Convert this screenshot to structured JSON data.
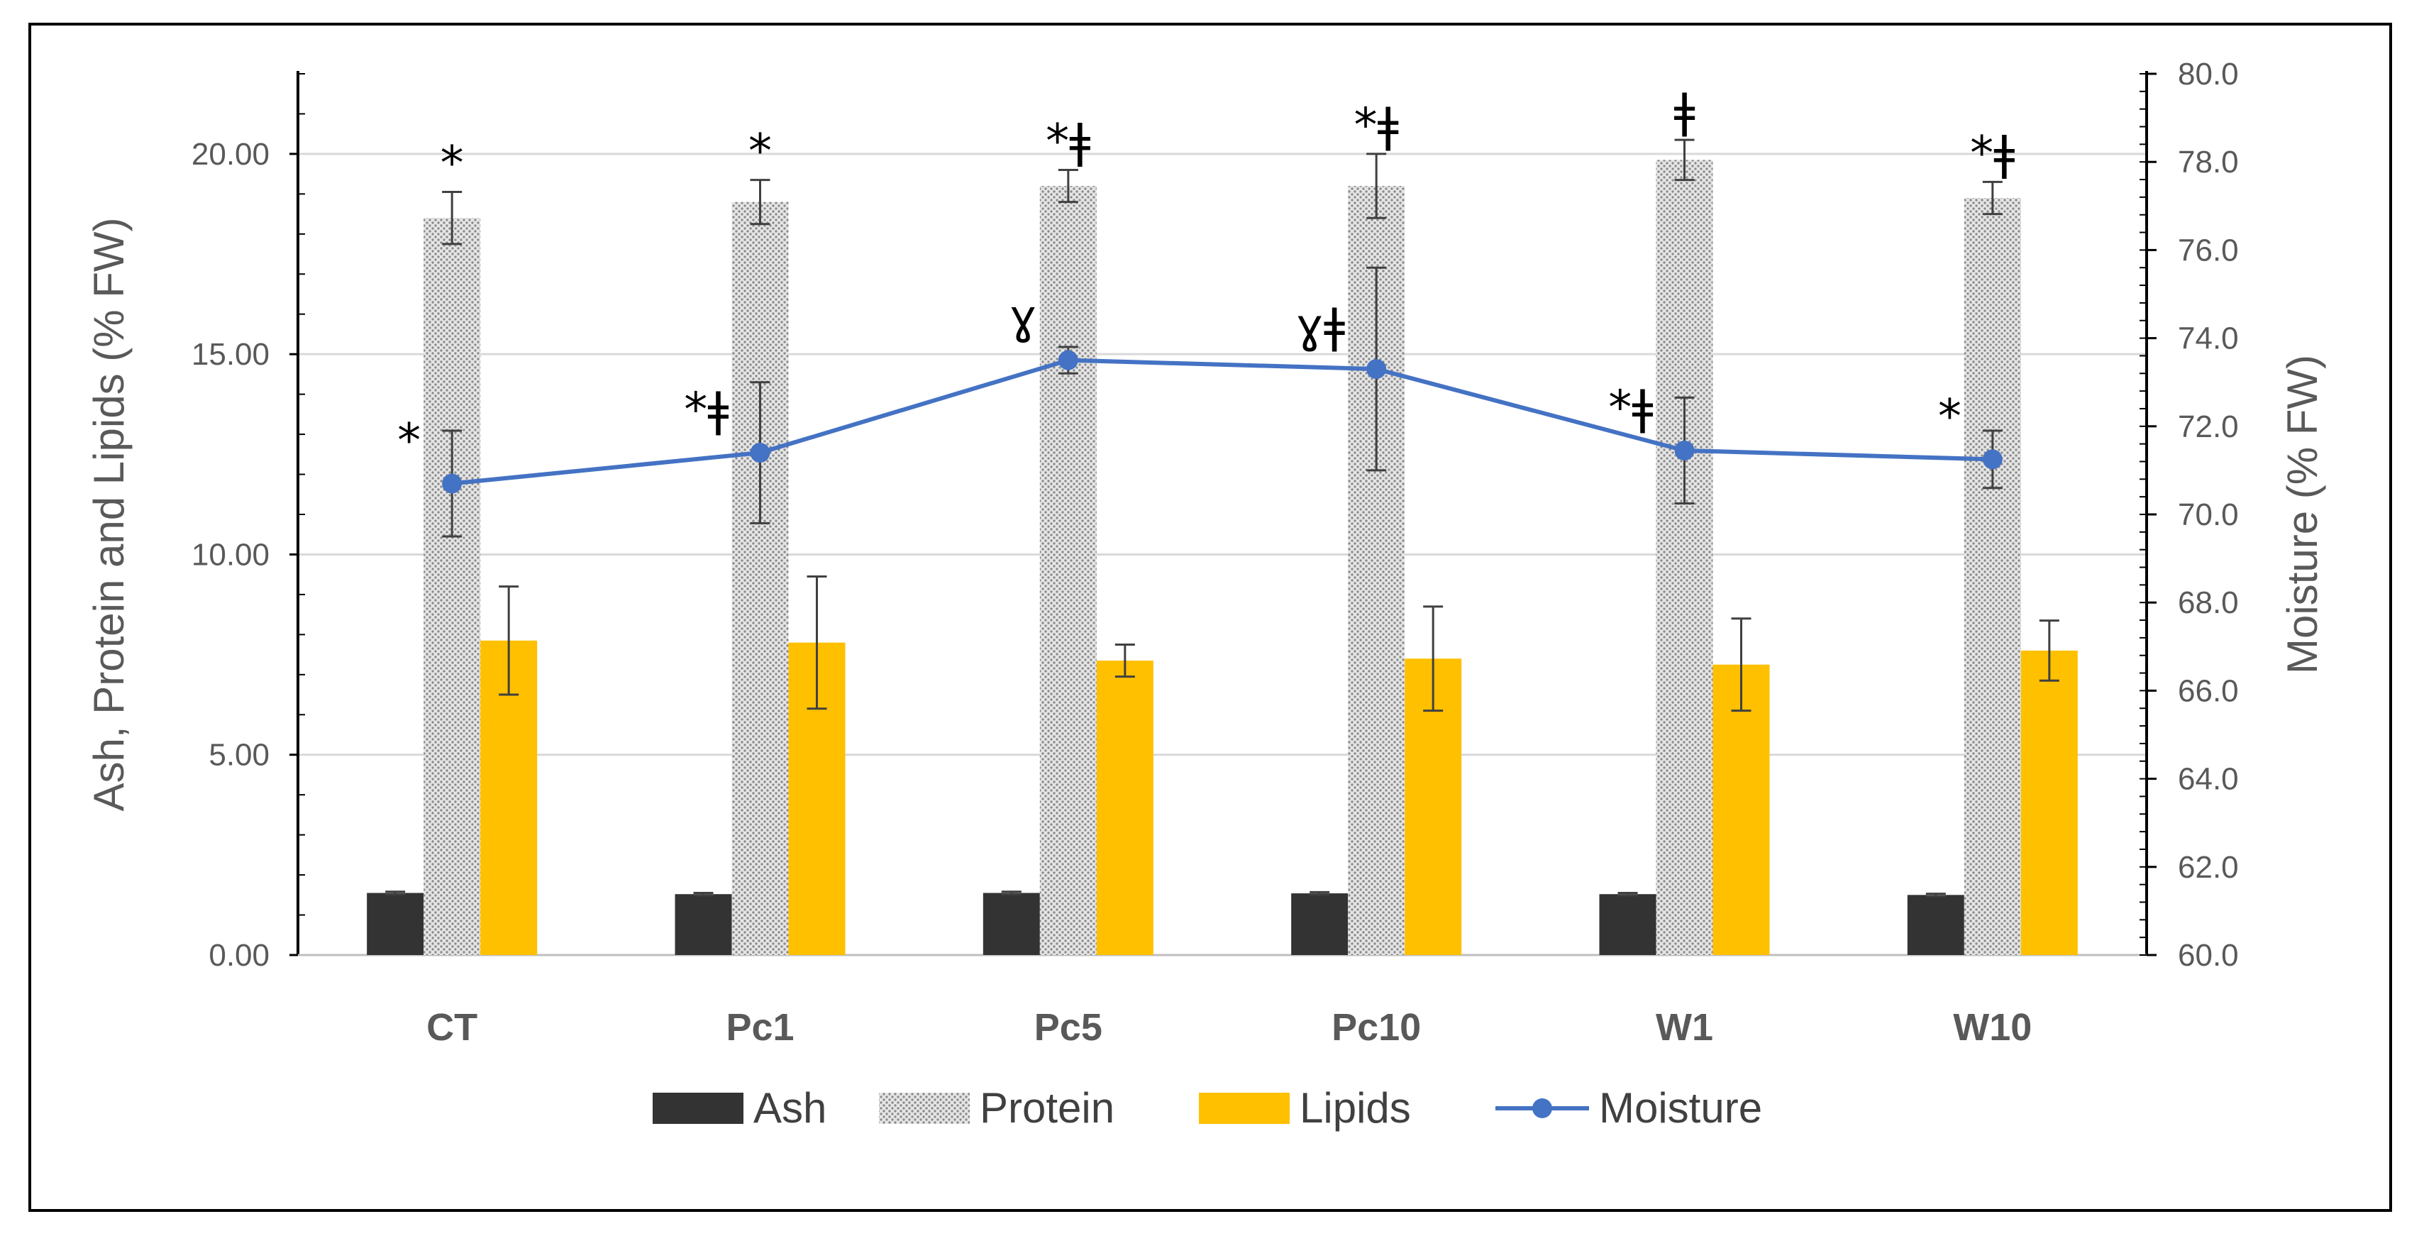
{
  "chart_data": {
    "type": "bar",
    "title": "",
    "xlabel": "",
    "ylabel": "Ash, Protein and Lipids (% FW)",
    "ylabel_secondary": "Moisture (% FW)",
    "categories": [
      "CT",
      "Pc1",
      "Pc5",
      "Pc10",
      "W1",
      "W10"
    ],
    "ylim": [
      0,
      22
    ],
    "ylim_secondary": [
      60,
      80
    ],
    "yticks": [
      "0.00",
      "5.00",
      "10.00",
      "15.00",
      "20.00"
    ],
    "yticks_secondary": [
      "60.0",
      "62.0",
      "64.0",
      "66.0",
      "68.0",
      "70.0",
      "72.0",
      "74.0",
      "76.0",
      "78.0",
      "80.0"
    ],
    "grid": true,
    "legend_position": "bottom",
    "series": [
      {
        "name": "Ash",
        "type": "bar",
        "color": "#333333",
        "values": [
          1.55,
          1.52,
          1.55,
          1.54,
          1.52,
          1.5
        ],
        "errors": [
          0.03,
          0.03,
          0.03,
          0.03,
          0.03,
          0.03
        ]
      },
      {
        "name": "Protein",
        "type": "bar",
        "pattern": "dotted",
        "color": "#a6a6a6",
        "values": [
          18.4,
          18.8,
          19.2,
          19.2,
          19.85,
          18.9
        ],
        "errors": [
          0.65,
          0.55,
          0.4,
          0.8,
          0.5,
          0.4
        ]
      },
      {
        "name": "Lipids",
        "type": "bar",
        "color": "#ffc000",
        "values": [
          7.85,
          7.8,
          7.35,
          7.4,
          7.25,
          7.6
        ],
        "errors": [
          1.35,
          1.65,
          0.4,
          1.3,
          1.15,
          0.75
        ]
      },
      {
        "name": "Moisture",
        "type": "line",
        "axis": "secondary",
        "color": "#4472c4",
        "values": [
          70.7,
          71.4,
          73.5,
          73.3,
          71.45,
          71.25
        ],
        "errors": [
          1.2,
          1.6,
          0.3,
          2.3,
          1.2,
          0.65
        ]
      }
    ],
    "annotations": {
      "protein": [
        "*",
        "*",
        "*ǂ",
        "*ǂ",
        "ǂ",
        "*ǂ"
      ],
      "moisture": [
        "*",
        "*ǂ",
        "ɣ",
        "ɣǂ",
        "*ǂ",
        "*"
      ]
    }
  }
}
